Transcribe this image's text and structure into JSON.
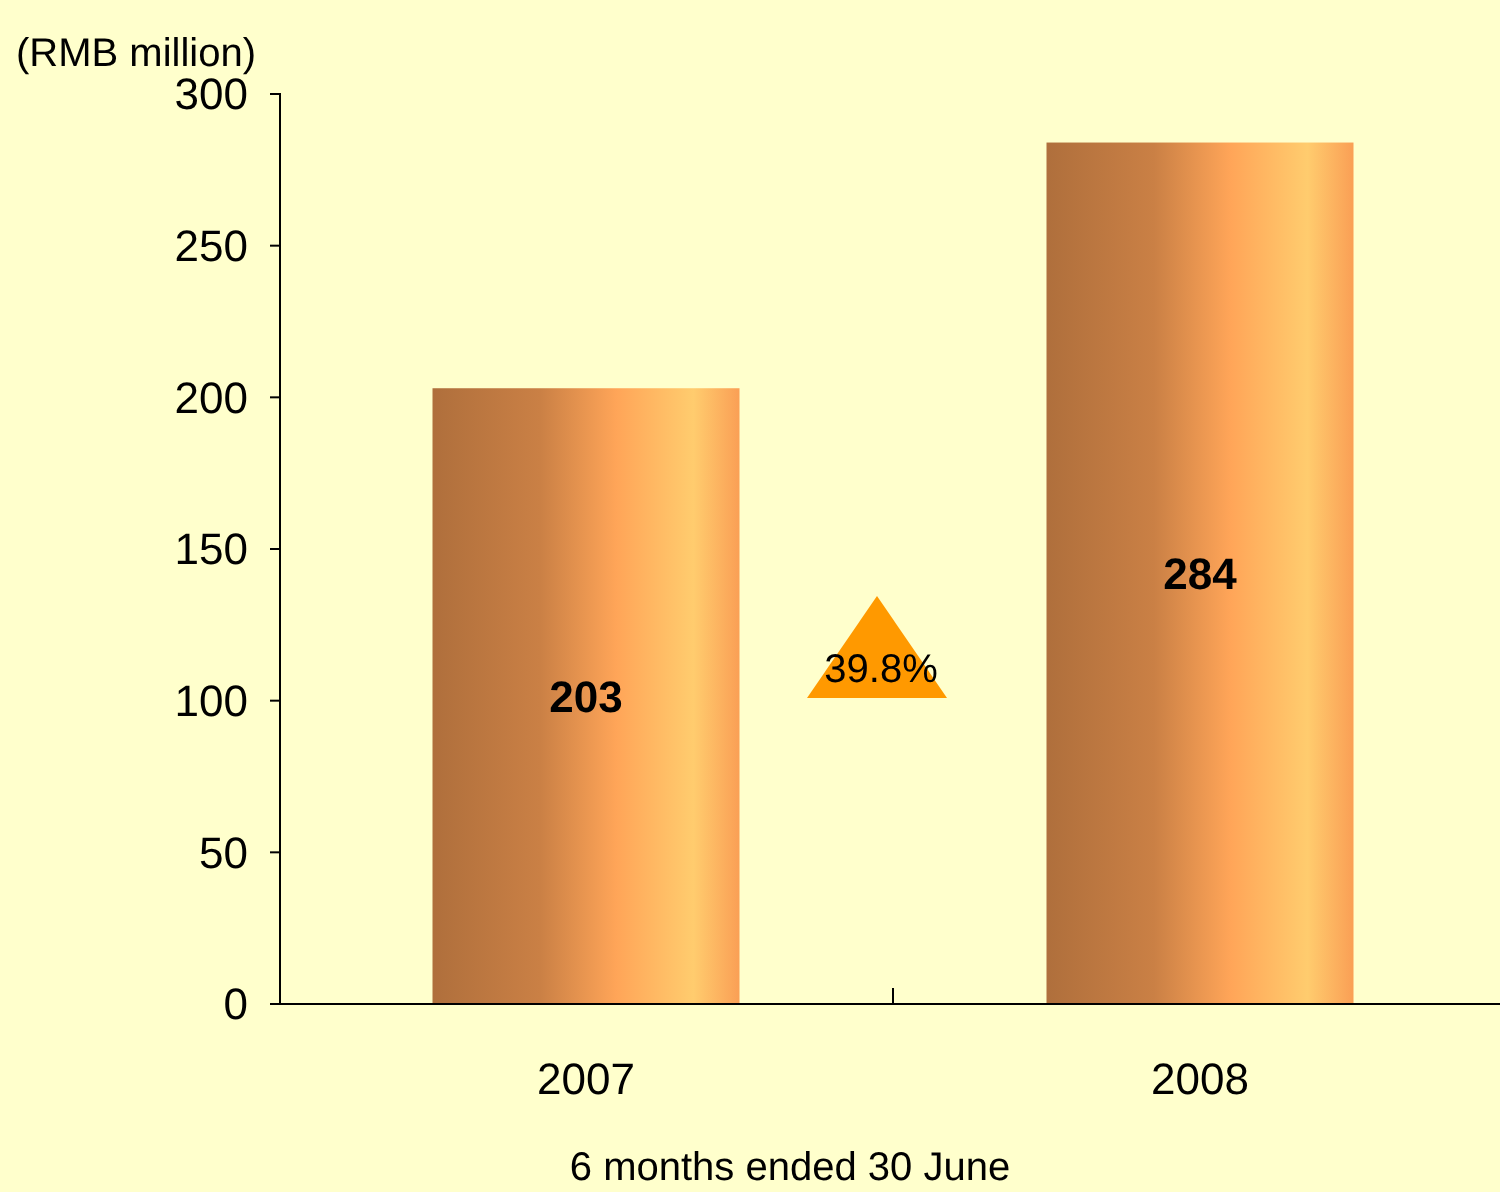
{
  "chart_data": {
    "type": "bar",
    "categories": [
      "2007",
      "2008"
    ],
    "values": [
      203,
      284
    ],
    "color": "#d98a4a",
    "ylim": [
      0,
      300
    ],
    "yticks": [
      0,
      50,
      100,
      150,
      200,
      250,
      300
    ],
    "ylabel": "(RMB million)",
    "xlabel": "6 months ended 30 June",
    "data_labels": true,
    "grid": false,
    "annotations": [
      "39.8%"
    ]
  }
}
